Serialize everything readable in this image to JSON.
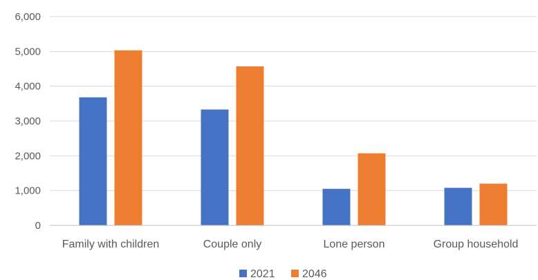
{
  "chart_data": {
    "type": "bar",
    "title": "",
    "xlabel": "",
    "ylabel": "",
    "categories": [
      "Family with children",
      "Couple only",
      "Lone person",
      "Group household"
    ],
    "series": [
      {
        "name": "2021",
        "values": [
          3680,
          3330,
          1050,
          1080
        ],
        "color": "#4472C4"
      },
      {
        "name": "2046",
        "values": [
          5030,
          4570,
          2070,
          1200
        ],
        "color": "#ED7D31"
      }
    ],
    "ylim": [
      0,
      6000
    ],
    "yticks": [
      0,
      1000,
      2000,
      3000,
      4000,
      5000,
      6000
    ],
    "ytick_labels": [
      "0",
      "1,000",
      "2,000",
      "3,000",
      "4,000",
      "5,000",
      "6,000"
    ],
    "grid": true,
    "legend_position": "bottom"
  }
}
